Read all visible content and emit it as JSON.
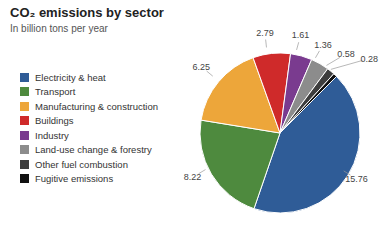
{
  "chart_data": {
    "type": "pie",
    "title": "CO₂ emissions by sector",
    "subtitle": "In billion tons per year",
    "categories": [
      "Electricity & heat",
      "Transport",
      "Manufacturing & construction",
      "Buildings",
      "Industry",
      "Land-use change & forestry",
      "Other fuel combustion",
      "Fugitive emissions"
    ],
    "values": [
      15.76,
      8.22,
      6.25,
      2.79,
      1.61,
      1.36,
      0.58,
      0.28
    ],
    "colors": [
      "#2f5c97",
      "#4e8a3e",
      "#eda63a",
      "#cf2a2a",
      "#7a3b8f",
      "#8c8c8c",
      "#3d3d3d",
      "#111111"
    ],
    "data_labels": true,
    "legend": "left"
  }
}
